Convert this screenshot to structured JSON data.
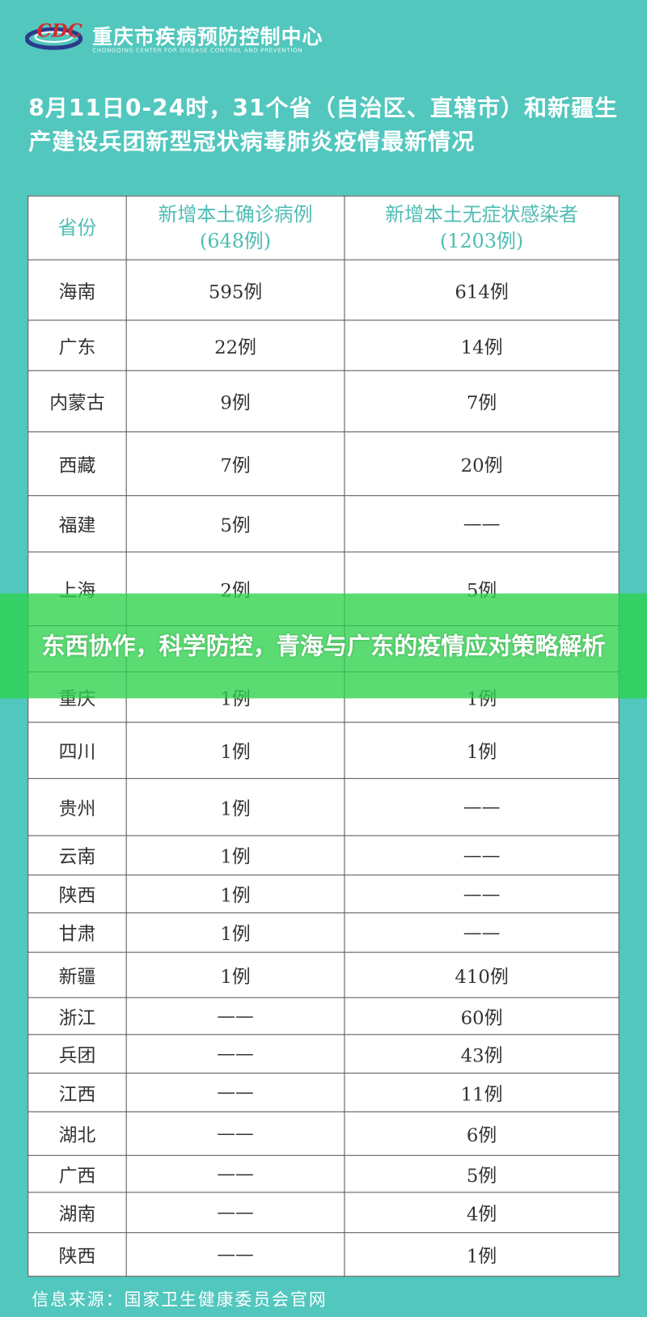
{
  "header": {
    "org_name": "重庆市疾病预防控制中心",
    "org_name_en": "CHONGQING CENTER FOR DISEASE CONTROL AND PREVENTION",
    "logo_text": "CDC"
  },
  "title": "8月11日0-24时，31个省（自治区、直辖市）和新疆生产建设兵团新型冠状病毒肺炎疫情最新情况",
  "table": {
    "headers": [
      "省份",
      "新增本土确诊病例\n(648例)",
      "新增本土无症状感染者\n(1203例)"
    ],
    "rows": [
      [
        "海南",
        "595例",
        "614例"
      ],
      [
        "广东",
        "22例",
        "14例"
      ],
      [
        "内蒙古",
        "9例",
        "7例"
      ],
      [
        "西藏",
        "7例",
        "20例"
      ],
      [
        "福建",
        "5例",
        "——"
      ],
      [
        "上海",
        "2例",
        "5例"
      ],
      [
        "",
        "",
        ""
      ],
      [
        "重庆",
        "1例",
        "1例"
      ],
      [
        "四川",
        "1例",
        "1例"
      ],
      [
        "贵州",
        "1例",
        "——"
      ],
      [
        "云南",
        "1例",
        "——"
      ],
      [
        "陕西",
        "1例",
        "——"
      ],
      [
        "甘肃",
        "1例",
        "——"
      ],
      [
        "新疆",
        "1例",
        "410例"
      ],
      [
        "浙江",
        "——",
        "60例"
      ],
      [
        "兵团",
        "——",
        "43例"
      ],
      [
        "江西",
        "——",
        "11例"
      ],
      [
        "湖北",
        "——",
        "6例"
      ],
      [
        "广西",
        "——",
        "5例"
      ],
      [
        "湖南",
        "——",
        "4例"
      ],
      [
        "陕西",
        "——",
        "1例"
      ]
    ]
  },
  "footer": "信息来源：国家卫生健康委员会官网",
  "banner": "东西协作，科学防控，青海与广东的疫情应对策略解析",
  "colors": {
    "background": "#52c7be",
    "header_text": "#4fbdb3",
    "banner": "#2dd24b"
  }
}
